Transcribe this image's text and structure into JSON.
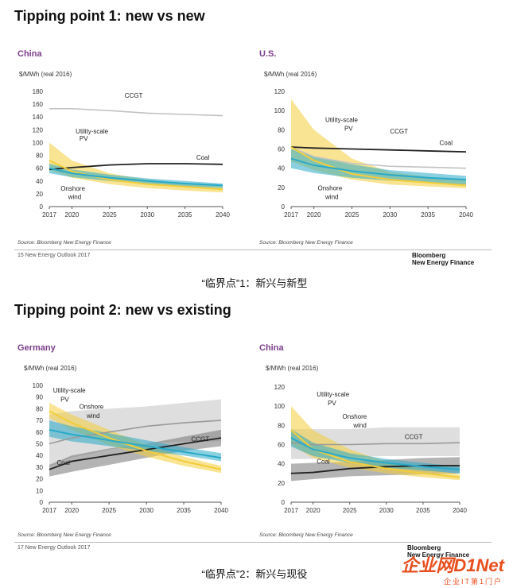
{
  "page": {
    "title1": "Tipping point 1: new vs new",
    "title2": "Tipping point 2: new vs existing",
    "caption1": "“临界点”1：新兴与新型",
    "caption2": "“临界点”2：新兴与现役",
    "source": "Source: Bloomberg New Energy Finance",
    "footer1": "15    New Energy Outlook 2017",
    "footer2": "17    New Energy Outlook 2017",
    "brand_line1": "Bloomberg",
    "brand_line2": "New Energy Finance",
    "watermark": "企业网D1Net",
    "watermark_sub": "企业IT第1门户"
  },
  "colors": {
    "pv": "#f2cd3a",
    "wind": "#29a9c9",
    "coal": "#222222",
    "ccgt": "#bbbbbb",
    "title": "#7a3d8a"
  },
  "chart_data": [
    {
      "type": "area",
      "title": "China",
      "ylabel": "$/MWh (real 2016)",
      "xlim": [
        2017,
        2040
      ],
      "ylim": [
        0,
        180
      ],
      "yticks": [
        0,
        20,
        40,
        60,
        80,
        100,
        120,
        140,
        160,
        180
      ],
      "xticks": [
        2017,
        2020,
        2025,
        2030,
        2035,
        2040
      ],
      "annotations": [
        {
          "text": "CCGT",
          "at": [
            2027,
            170
          ]
        },
        {
          "text": "Utility-scale",
          "at": [
            2020.5,
            114
          ]
        },
        {
          "text": "PV",
          "at": [
            2021,
            103
          ]
        },
        {
          "text": "Coal",
          "at": [
            2036.5,
            73
          ]
        },
        {
          "text": "Onshore",
          "at": [
            2018.5,
            25
          ]
        },
        {
          "text": "wind",
          "at": [
            2019.5,
            12
          ]
        }
      ],
      "series": [
        {
          "name": "Utility-scale PV",
          "x": [
            2017,
            2020,
            2025,
            2030,
            2035,
            2040
          ],
          "values": [
            72,
            55,
            42,
            35,
            31,
            27
          ],
          "low": [
            57,
            45,
            35,
            29,
            25,
            22
          ],
          "high": [
            100,
            72,
            52,
            42,
            36,
            31
          ]
        },
        {
          "name": "Onshore wind",
          "x": [
            2017,
            2020,
            2025,
            2030,
            2035,
            2040
          ],
          "values": [
            60,
            52,
            45,
            40,
            36,
            33
          ],
          "low": [
            52,
            46,
            40,
            35,
            32,
            29
          ],
          "high": [
            67,
            58,
            50,
            44,
            40,
            36
          ]
        },
        {
          "name": "Coal",
          "x": [
            2017,
            2020,
            2025,
            2030,
            2035,
            2040
          ],
          "values": [
            58,
            61,
            65,
            67,
            67,
            66
          ]
        },
        {
          "name": "CCGT",
          "x": [
            2017,
            2020,
            2025,
            2030,
            2035,
            2040
          ],
          "values": [
            153,
            153,
            150,
            146,
            144,
            142
          ]
        }
      ]
    },
    {
      "type": "area",
      "title": "U.S.",
      "ylabel": "$/MWh (real 2016)",
      "xlim": [
        2017,
        2040
      ],
      "ylim": [
        0,
        120
      ],
      "yticks": [
        0,
        20,
        40,
        60,
        80,
        100,
        120
      ],
      "xticks": [
        2017,
        2020,
        2025,
        2030,
        2035,
        2040
      ],
      "annotations": [
        {
          "text": "Utility-scale",
          "at": [
            2021.5,
            88
          ]
        },
        {
          "text": "PV",
          "at": [
            2024,
            79
          ]
        },
        {
          "text": "CCGT",
          "at": [
            2030,
            76
          ]
        },
        {
          "text": "Coal",
          "at": [
            2036.5,
            64
          ]
        },
        {
          "text": "Onshore",
          "at": [
            2020.5,
            17
          ]
        },
        {
          "text": "wind",
          "at": [
            2021.5,
            8
          ]
        }
      ],
      "series": [
        {
          "name": "Utility-scale PV",
          "x": [
            2017,
            2020,
            2025,
            2030,
            2035,
            2040
          ],
          "values": [
            62,
            48,
            34,
            28,
            25,
            22
          ],
          "low": [
            47,
            38,
            28,
            23,
            21,
            19
          ],
          "high": [
            112,
            80,
            50,
            36,
            31,
            27
          ]
        },
        {
          "name": "Onshore wind",
          "x": [
            2017,
            2020,
            2025,
            2030,
            2035,
            2040
          ],
          "values": [
            50,
            43,
            37,
            33,
            30,
            28
          ],
          "low": [
            40,
            35,
            30,
            27,
            25,
            23
          ],
          "high": [
            60,
            52,
            44,
            38,
            35,
            32
          ]
        },
        {
          "name": "Coal",
          "x": [
            2017,
            2020,
            2025,
            2030,
            2035,
            2040
          ],
          "values": [
            62,
            61,
            60,
            59,
            58,
            57
          ]
        },
        {
          "name": "CCGT",
          "x": [
            2017,
            2020,
            2025,
            2030,
            2035,
            2040
          ],
          "values": [
            62,
            52,
            45,
            42,
            41,
            40
          ]
        }
      ]
    },
    {
      "type": "area",
      "title": "Germany",
      "ylabel": "$/MWh (real 2016)",
      "xlim": [
        2017,
        2040
      ],
      "ylim": [
        0,
        100
      ],
      "yticks": [
        0,
        10,
        20,
        30,
        40,
        50,
        60,
        70,
        80,
        90,
        100
      ],
      "xticks": [
        2017,
        2020,
        2025,
        2030,
        2035,
        2040
      ],
      "annotations": [
        {
          "text": "Utility-scale",
          "at": [
            2017.5,
            94
          ]
        },
        {
          "text": "PV",
          "at": [
            2018.5,
            86
          ]
        },
        {
          "text": "Onshore",
          "at": [
            2021,
            80
          ]
        },
        {
          "text": "wind",
          "at": [
            2022,
            72
          ]
        },
        {
          "text": "CCGT",
          "at": [
            2036,
            52
          ]
        },
        {
          "text": "Coal",
          "at": [
            2018,
            32
          ]
        }
      ],
      "series": [
        {
          "name": "Utility-scale PV",
          "x": [
            2017,
            2020,
            2025,
            2030,
            2035,
            2040
          ],
          "values": [
            78,
            68,
            55,
            44,
            35,
            28
          ],
          "low": [
            72,
            62,
            49,
            39,
            31,
            25
          ],
          "high": [
            85,
            75,
            62,
            49,
            39,
            31
          ]
        },
        {
          "name": "Onshore wind",
          "x": [
            2017,
            2020,
            2025,
            2030,
            2035,
            2040
          ],
          "values": [
            62,
            58,
            53,
            48,
            43,
            38
          ],
          "low": [
            56,
            52,
            48,
            44,
            40,
            35
          ],
          "high": [
            70,
            65,
            59,
            53,
            47,
            42
          ]
        },
        {
          "name": "Coal",
          "x": [
            2017,
            2020,
            2025,
            2030,
            2035,
            2040
          ],
          "values": [
            28,
            35,
            40,
            45,
            50,
            55
          ],
          "low": [
            22,
            26,
            32,
            38,
            44,
            48
          ],
          "high": [
            32,
            40,
            46,
            50,
            56,
            62
          ]
        },
        {
          "name": "CCGT",
          "x": [
            2017,
            2020,
            2025,
            2030,
            2035,
            2040
          ],
          "values": [
            50,
            55,
            60,
            65,
            68,
            70
          ],
          "low": [
            30,
            38,
            45,
            50,
            52,
            52
          ],
          "high": [
            75,
            78,
            80,
            82,
            85,
            88
          ]
        }
      ]
    },
    {
      "type": "area",
      "title": "China",
      "ylabel": "$/MWh (real 2016)",
      "xlim": [
        2017,
        2040
      ],
      "ylim": [
        0,
        120
      ],
      "yticks": [
        0,
        20,
        40,
        60,
        80,
        100,
        120
      ],
      "xticks": [
        2017,
        2020,
        2025,
        2030,
        2035,
        2040
      ],
      "annotations": [
        {
          "text": "Utility-scale",
          "at": [
            2020.5,
            110
          ]
        },
        {
          "text": "PV",
          "at": [
            2022,
            101
          ]
        },
        {
          "text": "Onshore",
          "at": [
            2024,
            87
          ]
        },
        {
          "text": "wind",
          "at": [
            2025.5,
            78
          ]
        },
        {
          "text": "CCGT",
          "at": [
            2032.5,
            66
          ]
        },
        {
          "text": "Coal",
          "at": [
            2020.5,
            40
          ]
        }
      ],
      "series": [
        {
          "name": "Utility-scale PV",
          "x": [
            2017,
            2020,
            2025,
            2030,
            2035,
            2040
          ],
          "values": [
            75,
            55,
            42,
            35,
            30,
            26
          ],
          "low": [
            60,
            46,
            36,
            30,
            26,
            23
          ],
          "high": [
            100,
            75,
            55,
            42,
            35,
            29
          ]
        },
        {
          "name": "Onshore wind",
          "x": [
            2017,
            2020,
            2025,
            2030,
            2035,
            2040
          ],
          "values": [
            67,
            55,
            46,
            41,
            37,
            34
          ],
          "low": [
            58,
            48,
            41,
            36,
            33,
            30
          ],
          "high": [
            76,
            62,
            51,
            45,
            41,
            37
          ]
        },
        {
          "name": "Coal",
          "x": [
            2017,
            2020,
            2025,
            2030,
            2035,
            2040
          ],
          "values": [
            30,
            31,
            35,
            37,
            38,
            38
          ],
          "low": [
            22,
            24,
            27,
            28,
            29,
            30
          ],
          "high": [
            40,
            41,
            42,
            44,
            46,
            47
          ]
        },
        {
          "name": "CCGT",
          "x": [
            2017,
            2020,
            2025,
            2030,
            2035,
            2040
          ],
          "values": [
            62,
            60,
            60,
            61,
            61,
            62
          ],
          "low": [
            45,
            45,
            47,
            48,
            48,
            48
          ],
          "high": [
            76,
            76,
            76,
            78,
            78,
            78
          ]
        }
      ]
    }
  ]
}
